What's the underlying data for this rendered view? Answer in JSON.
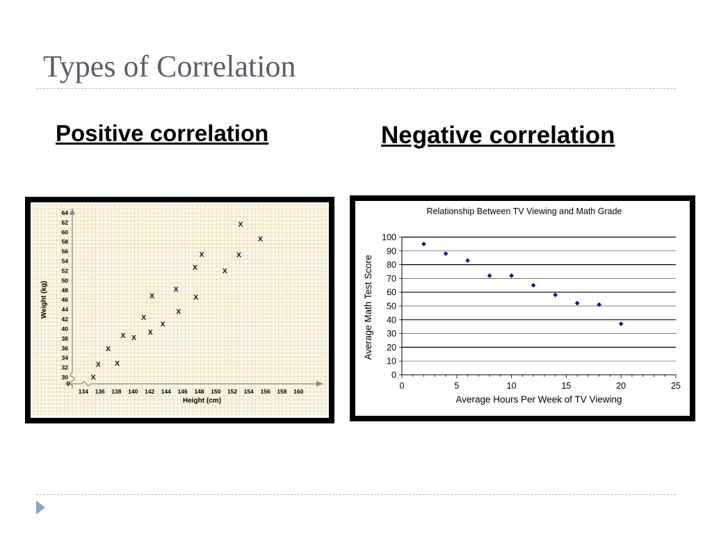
{
  "slide": {
    "title": "Types of Correlation",
    "left_heading": "Positive correlation",
    "right_heading": "Negative correlation"
  },
  "colors": {
    "title_text": "#5a5f66",
    "divider": "#aab6c6",
    "nav_arrow": "#8ba3c8",
    "left_chart_background": "#fbf8ec",
    "left_chart_grid": "#e8d6a4",
    "negative_points": "#0d1d78"
  },
  "icons": {
    "nav_arrow": "play-triangle-icon"
  },
  "chart_data": [
    {
      "type": "scatter",
      "title": "",
      "xlabel": "Height (cm)",
      "ylabel": "Weight (kg)",
      "marker": "X",
      "origin_label": "0",
      "xlim": [
        133,
        162
      ],
      "ylim": [
        28.5,
        65
      ],
      "axis_break": true,
      "grid": true,
      "xticks": [
        134,
        136,
        138,
        140,
        142,
        144,
        146,
        148,
        150,
        152,
        154,
        156,
        158,
        160
      ],
      "yticks": [
        30,
        32,
        34,
        36,
        38,
        40,
        42,
        44,
        46,
        48,
        50,
        52,
        54,
        56,
        58,
        60,
        62,
        64
      ],
      "points": [
        {
          "x": 135.2,
          "y": 30
        },
        {
          "x": 135.8,
          "y": 32.7
        },
        {
          "x": 137,
          "y": 35.9
        },
        {
          "x": 138.1,
          "y": 32.9
        },
        {
          "x": 138.8,
          "y": 38.6
        },
        {
          "x": 140.1,
          "y": 38.2
        },
        {
          "x": 141.3,
          "y": 42.4
        },
        {
          "x": 142.1,
          "y": 39.3
        },
        {
          "x": 142.3,
          "y": 46.8
        },
        {
          "x": 143.6,
          "y": 41
        },
        {
          "x": 145.2,
          "y": 48.2
        },
        {
          "x": 145.5,
          "y": 43.6
        },
        {
          "x": 147.5,
          "y": 52.7
        },
        {
          "x": 147.6,
          "y": 46.5
        },
        {
          "x": 148.3,
          "y": 55.4
        },
        {
          "x": 151.1,
          "y": 52
        },
        {
          "x": 152.8,
          "y": 55.3
        },
        {
          "x": 153,
          "y": 61.6
        },
        {
          "x": 155.4,
          "y": 58.6
        }
      ]
    },
    {
      "type": "scatter",
      "title": "Relationship Between TV Viewing and Math Grade",
      "xlabel": "Average Hours Per Week of TV Viewing",
      "ylabel": "Average Math Test Score",
      "marker": "diamond",
      "xlim": [
        0,
        25
      ],
      "ylim": [
        0,
        100
      ],
      "xticks": [
        0,
        5,
        10,
        15,
        20,
        25
      ],
      "yticks": [
        0,
        10,
        20,
        30,
        40,
        50,
        60,
        70,
        80,
        90,
        100
      ],
      "grid": "horizontal",
      "points": [
        {
          "x": 2,
          "y": 95
        },
        {
          "x": 4,
          "y": 88
        },
        {
          "x": 6,
          "y": 83
        },
        {
          "x": 8,
          "y": 72
        },
        {
          "x": 10,
          "y": 72
        },
        {
          "x": 12,
          "y": 65
        },
        {
          "x": 14,
          "y": 58
        },
        {
          "x": 16,
          "y": 52
        },
        {
          "x": 18,
          "y": 51
        },
        {
          "x": 20,
          "y": 37
        }
      ]
    }
  ]
}
